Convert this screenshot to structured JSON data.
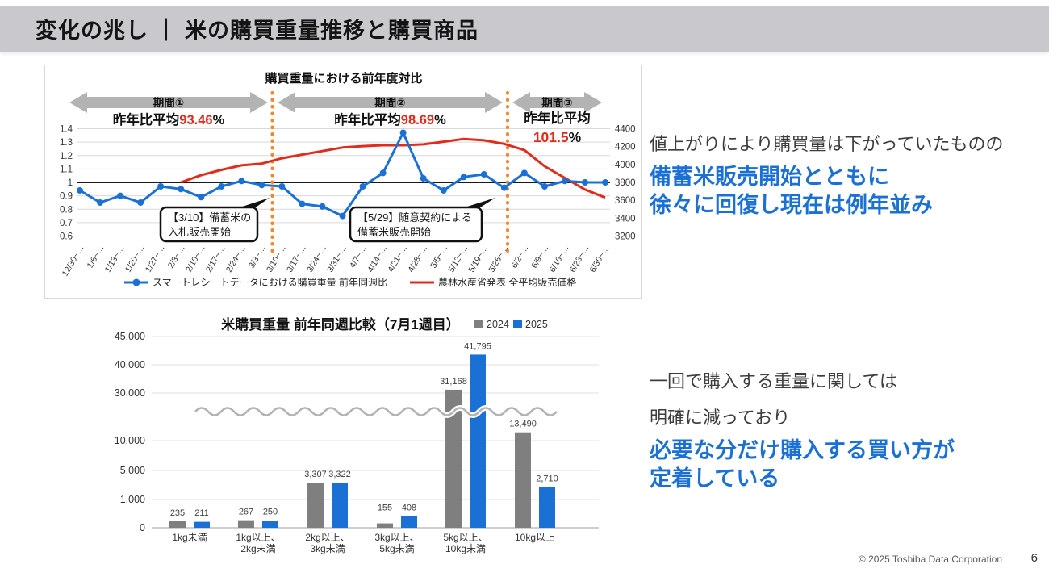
{
  "slide": {
    "title": "変化の兆し ｜ 米の購買重量推移と購買商品",
    "page_number": "6",
    "copyright": "© 2025 Toshiba Data Corporation"
  },
  "colors": {
    "accent_blue": "#1B70D5",
    "red": "#E02B1D",
    "orange": "#F2862C",
    "band_gray": "#C9C9CD",
    "bar_gray_2024": "#7F7F7F",
    "arrow_gray": "#B3B3B3",
    "grid_gray": "#D9D9D9",
    "axis_text": "#333333"
  },
  "insight_top": {
    "line1": "値上がりにより購買量は下がっていたものの",
    "line2": "備蓄米販売開始とともに",
    "line3": "徐々に回復し現在は例年並み"
  },
  "insight_bottom": {
    "line1": "一回で購入する重量に関しては",
    "line2": "明確に減っており",
    "line3": "必要な分だけ購入する買い方が",
    "line4": "定着している"
  },
  "chart_data": [
    {
      "type": "line",
      "title": "購買重量における前年度対比",
      "x": [
        "12/30~",
        "1/6~",
        "1/13~",
        "1/20~",
        "1/27~",
        "2/3~",
        "2/10~",
        "2/17~",
        "2/24~",
        "3/3~",
        "3/10~",
        "3/17~",
        "3/24~",
        "3/31~",
        "4/7~",
        "4/14~",
        "4/21~",
        "4/28~",
        "5/5~",
        "5/12~",
        "5/19~",
        "5/26~",
        "6/2~",
        "6/9~",
        "6/16~",
        "6/23~",
        "6/30~"
      ],
      "x_label_ellipsis": "…",
      "series": [
        {
          "name": "スマートレシートデータにおける購買重量 前年同週比",
          "axis": "left",
          "marker": true,
          "start_index": 0,
          "values": [
            0.94,
            0.85,
            0.9,
            0.85,
            0.97,
            0.95,
            0.89,
            0.97,
            1.01,
            0.98,
            0.97,
            0.84,
            0.82,
            0.75,
            0.97,
            1.07,
            1.37,
            1.03,
            0.94,
            1.04,
            1.06,
            0.96,
            1.07,
            0.97,
            1.01,
            1.0,
            1.0
          ]
        },
        {
          "name": "農林水産省発表  全平均販売価格",
          "axis": "right",
          "marker": false,
          "start_index": 5,
          "values": [
            3800,
            3880,
            3940,
            3990,
            4010,
            4070,
            4110,
            4150,
            4190,
            4205,
            4215,
            4215,
            4225,
            4255,
            4285,
            4270,
            4230,
            4160,
            3980,
            3850,
            3720,
            3630
          ]
        }
      ],
      "left_axis": {
        "ticks": [
          1.4,
          1.3,
          1.2,
          1.1,
          1.0,
          0.9,
          0.8,
          0.7,
          0.6
        ],
        "tick_labels": [
          "1.4",
          "1.3",
          "1.2",
          "1.1",
          "1",
          "0.9",
          "0.8",
          "0.7",
          "0.6"
        ],
        "baseline": 1.0
      },
      "right_axis": {
        "ticks": [
          4400,
          4200,
          4000,
          3800,
          3600,
          3400,
          3200
        ],
        "tick_labels": [
          "4400",
          "4200",
          "4000",
          "3800",
          "3600",
          "3400",
          "3200"
        ]
      },
      "periods": [
        {
          "label": "期間①",
          "stat_prefix": "昨年比平均",
          "stat_value": "93.46",
          "stat_suffix": "%",
          "two_line": false
        },
        {
          "label": "期間②",
          "stat_prefix": "昨年比平均",
          "stat_value": "98.69",
          "stat_suffix": "%",
          "two_line": false
        },
        {
          "label": "期間③",
          "stat_prefix": "昨年比平均",
          "stat_value": "101.5",
          "stat_suffix": "%",
          "two_line": true
        }
      ],
      "callouts": [
        {
          "line1": "【3/10】備蓄米の",
          "line2": "入札販売開始"
        },
        {
          "line1": "【5/29】随意契約による",
          "line2": "備蓄米販売開始"
        }
      ]
    },
    {
      "type": "bar",
      "title": "米購買重量 前年同週比較（7月1週目）",
      "legend": [
        "2024",
        "2025"
      ],
      "categories": [
        [
          "1kg未満"
        ],
        [
          "1kg以上、",
          "2kg未満"
        ],
        [
          "2kg以上、",
          "3kg未満"
        ],
        [
          "3kg以上、",
          "5kg未満"
        ],
        [
          "5kg以上、",
          "10kg未満"
        ],
        [
          "10kg以上"
        ]
      ],
      "series": [
        {
          "name": "2024",
          "values": [
            235,
            267,
            3307,
            155,
            31168,
            13490
          ]
        },
        {
          "name": "2025",
          "values": [
            211,
            250,
            3322,
            408,
            41795,
            2710
          ]
        }
      ],
      "value_labels": [
        [
          "235",
          "211"
        ],
        [
          "267",
          "250"
        ],
        [
          "3,307",
          "3,322"
        ],
        [
          "155",
          "408"
        ],
        [
          "31,168",
          "41,795"
        ],
        [
          "13,490",
          "2,710"
        ]
      ],
      "y_axis": {
        "tick_values": [
          45000,
          40000,
          30000,
          10000,
          5000,
          1000,
          0
        ],
        "tick_labels": [
          "45,000",
          "40,000",
          "30,000",
          "10,000",
          "5,000",
          "1,000",
          "0"
        ],
        "broken_axis": true
      }
    }
  ]
}
